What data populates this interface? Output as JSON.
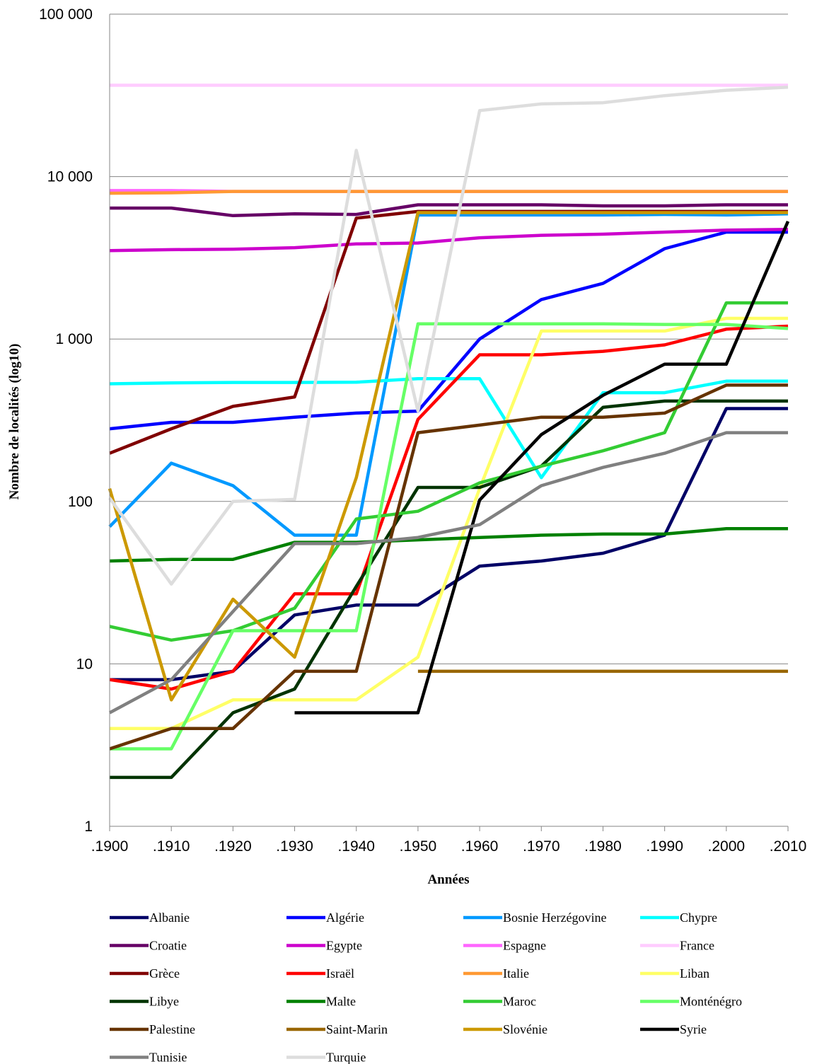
{
  "chart_data": {
    "type": "line",
    "xlabel": "Années",
    "ylabel": "Nombre de localités (log10)",
    "y_scale": "log10",
    "ylim": [
      1,
      100000
    ],
    "y_ticks": [
      1,
      10,
      100,
      1000,
      10000,
      100000
    ],
    "y_tick_labels": [
      "1",
      "10",
      "100",
      "1 000",
      "10 000",
      "100 000"
    ],
    "x": [
      1900,
      1910,
      1920,
      1930,
      1940,
      1950,
      1960,
      1970,
      1980,
      1990,
      2000,
      2010
    ],
    "x_tick_labels": [
      ".1900",
      ".1910",
      ".1920",
      ".1930",
      ".1940",
      ".1950",
      ".1960",
      ".1970",
      ".1980",
      ".1990",
      ".2000",
      ".2010"
    ],
    "grid": "horizontal",
    "legend_position": "bottom",
    "series": [
      {
        "name": "Albanie",
        "color": "#000066",
        "values": [
          8,
          8,
          9,
          20,
          23,
          23,
          40,
          43,
          48,
          62,
          373,
          373
        ]
      },
      {
        "name": "Algérie",
        "color": "#0000ff",
        "values": [
          280,
          307,
          307,
          330,
          350,
          360,
          1000,
          1750,
          2200,
          3600,
          4550,
          4550
        ]
      },
      {
        "name": "Bosnie Herzégovine",
        "color": "#0099ff",
        "values": [
          70,
          172,
          125,
          62,
          62,
          5800,
          5800,
          5800,
          5800,
          5850,
          5800,
          5900
        ]
      },
      {
        "name": "Chypre",
        "color": "#00ffff",
        "values": [
          530,
          537,
          540,
          540,
          542,
          570,
          570,
          140,
          467,
          467,
          550,
          550
        ]
      },
      {
        "name": "Croatie",
        "color": "#660066",
        "values": [
          6400,
          6400,
          5750,
          5900,
          5850,
          6700,
          6700,
          6700,
          6600,
          6600,
          6700,
          6700
        ]
      },
      {
        "name": "Egypte",
        "color": "#cc00cc",
        "values": [
          3500,
          3550,
          3570,
          3650,
          3850,
          3900,
          4200,
          4350,
          4420,
          4550,
          4680,
          4730
        ]
      },
      {
        "name": "Espagne",
        "color": "#ff66ff",
        "values": [
          8200,
          8200,
          8100,
          8100,
          8100,
          8100,
          8100,
          8100,
          8100,
          8100,
          8100,
          8100
        ]
      },
      {
        "name": "France",
        "color": "#ffccff",
        "values": [
          36500,
          36500,
          36500,
          36500,
          36500,
          36500,
          36500,
          36500,
          36500,
          36500,
          36500,
          36500
        ]
      },
      {
        "name": "Grèce",
        "color": "#800000",
        "values": [
          198,
          280,
          385,
          440,
          5550,
          6100,
          6100,
          6100,
          6100,
          6100,
          6100,
          6100
        ]
      },
      {
        "name": "Israël",
        "color": "#ff0000",
        "values": [
          8,
          7,
          9,
          27,
          27,
          320,
          800,
          800,
          840,
          920,
          1150,
          1200
        ]
      },
      {
        "name": "Italie",
        "color": "#ff9933",
        "values": [
          7900,
          7950,
          8100,
          8100,
          8100,
          8100,
          8100,
          8100,
          8100,
          8100,
          8100,
          8100
        ]
      },
      {
        "name": "Liban",
        "color": "#ffff66",
        "values": [
          4,
          4,
          6,
          6,
          6,
          11,
          120,
          1120,
          1120,
          1120,
          1340,
          1340
        ]
      },
      {
        "name": "Libye",
        "color": "#003300",
        "values": [
          2,
          2,
          5,
          7,
          30,
          122,
          122,
          165,
          380,
          415,
          415,
          415
        ]
      },
      {
        "name": "Malte",
        "color": "#008000",
        "values": [
          43,
          44,
          44,
          56,
          56,
          58,
          60,
          62,
          63,
          63,
          68,
          68
        ]
      },
      {
        "name": "Maroc",
        "color": "#33cc33",
        "values": [
          17,
          14,
          16,
          22,
          78,
          87,
          130,
          165,
          205,
          265,
          1670,
          1670
        ]
      },
      {
        "name": "Monténégro",
        "color": "#66ff66",
        "values": [
          3,
          3,
          16,
          16,
          16,
          1240,
          1240,
          1240,
          1240,
          1230,
          1230,
          1160
        ]
      },
      {
        "name": "Palestine",
        "color": "#663300",
        "values": [
          3,
          4,
          4,
          9,
          9,
          265,
          295,
          330,
          330,
          350,
          520,
          520
        ]
      },
      {
        "name": "Saint-Marin",
        "color": "#996600",
        "values": [
          null,
          null,
          null,
          null,
          null,
          9,
          9,
          9,
          9,
          9,
          9,
          9
        ]
      },
      {
        "name": "Slovénie",
        "color": "#cc9900",
        "values": [
          120,
          6,
          25,
          11,
          140,
          6000,
          6000,
          6000,
          6000,
          6000,
          6000,
          6000
        ]
      },
      {
        "name": "Syrie",
        "color": "#000000",
        "values": [
          null,
          null,
          null,
          5,
          5,
          5,
          102,
          258,
          450,
          700,
          700,
          5300
        ]
      },
      {
        "name": "Tunisie",
        "color": "#808080",
        "values": [
          5,
          8,
          21,
          55,
          55,
          60,
          72,
          125,
          162,
          198,
          265,
          265
        ]
      },
      {
        "name": "Turquie",
        "color": "#dddddd",
        "values": [
          105,
          31,
          100,
          103,
          14500,
          360,
          25500,
          28000,
          28500,
          31500,
          34000,
          35500
        ]
      }
    ]
  }
}
